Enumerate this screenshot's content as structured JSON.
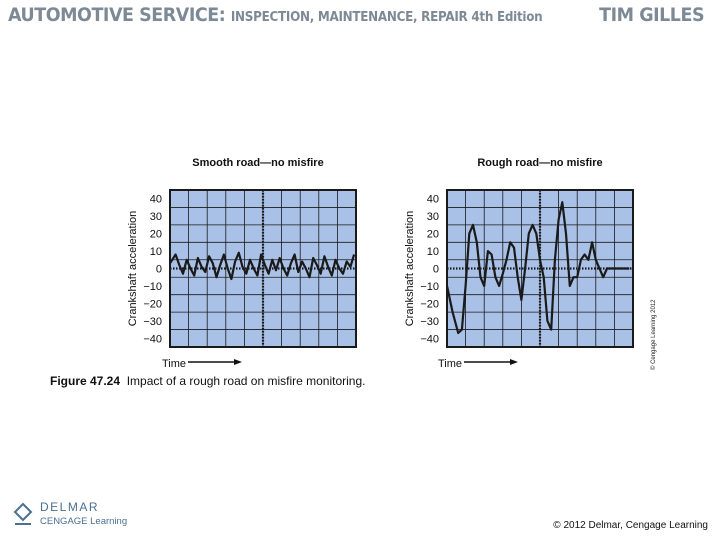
{
  "header": {
    "book_title_main": "AUTOMOTIVE SERVICE:",
    "book_title_sub": "INSPECTION, MAINTENANCE, REPAIR 4th Edition",
    "author": "TIM GILLES"
  },
  "figure": {
    "caption_number": "Figure 47.24",
    "caption_text": "Impact of a rough road on misfire monitoring.",
    "vertical_copyright": "© Cengage Learning 2012"
  },
  "footer": {
    "logo_line1": "DELMAR",
    "logo_line2": "CENGAGE Learning",
    "copyright": "© 2012 Delmar, Cengage Learning"
  },
  "colors": {
    "grid_bg": "#a9c1e6",
    "grid_line": "#1a1a1a",
    "trace": "#1a1a1a",
    "header_text": "#7d8a96",
    "logo": "#4a6f92"
  },
  "chart_data": [
    {
      "type": "line",
      "title": "Smooth road—no misfire",
      "ylabel": "Crankshaft acceleration",
      "xlabel": "Time",
      "yticks": [
        "40",
        "30",
        "20",
        "10",
        "0",
        "−10",
        "−20",
        "−30",
        "−40"
      ],
      "ylim": [
        -45,
        45
      ],
      "xlim": [
        0,
        100
      ],
      "grid": true,
      "series": [
        {
          "x": [
            0,
            3,
            5,
            7,
            9,
            11,
            13,
            15,
            17,
            19,
            21,
            23,
            25,
            27,
            29,
            31,
            33,
            35,
            37,
            39,
            41,
            43,
            45,
            47,
            49,
            51,
            53,
            55,
            57,
            59,
            61,
            63,
            65,
            67,
            69,
            71,
            73,
            75,
            77,
            79,
            81,
            83,
            85,
            87,
            89,
            91,
            93,
            95,
            97,
            99
          ],
          "y": [
            3,
            8,
            2,
            -3,
            5,
            0,
            -4,
            6,
            1,
            -2,
            7,
            3,
            -5,
            2,
            8,
            0,
            -6,
            4,
            9,
            1,
            -3,
            5,
            0,
            -4,
            8,
            2,
            -3,
            5,
            -1,
            6,
            0,
            -4,
            3,
            8,
            -2,
            4,
            0,
            -5,
            6,
            2,
            -3,
            7,
            1,
            -4,
            5,
            0,
            -3,
            4,
            1,
            8
          ]
        }
      ]
    },
    {
      "type": "line",
      "title": "Rough road—no misfire",
      "ylabel": "Crankshaft acceleration",
      "xlabel": "Time",
      "yticks": [
        "40",
        "30",
        "20",
        "10",
        "0",
        "−10",
        "−20",
        "−30",
        "−40"
      ],
      "ylim": [
        -45,
        45
      ],
      "xlim": [
        0,
        100
      ],
      "grid": true,
      "series": [
        {
          "x": [
            0,
            3,
            6,
            8,
            10,
            12,
            14,
            16,
            18,
            20,
            22,
            24,
            26,
            28,
            30,
            32,
            34,
            36,
            38,
            40,
            42,
            44,
            46,
            48,
            50,
            52,
            54,
            56,
            58,
            60,
            62,
            64,
            66,
            68,
            70,
            72,
            74,
            76,
            78,
            80,
            82,
            84,
            86,
            88,
            90,
            92,
            94,
            96,
            98
          ],
          "y": [
            -10,
            -25,
            -37,
            -35,
            -10,
            20,
            25,
            15,
            -5,
            -10,
            10,
            8,
            -5,
            -10,
            -3,
            5,
            15,
            12,
            -5,
            -18,
            0,
            20,
            25,
            20,
            5,
            -5,
            -30,
            -35,
            5,
            28,
            38,
            20,
            -10,
            -5,
            -5,
            5,
            8,
            5,
            15,
            5,
            0,
            -5,
            0,
            0,
            0,
            0,
            0,
            0,
            0
          ]
        }
      ]
    }
  ]
}
